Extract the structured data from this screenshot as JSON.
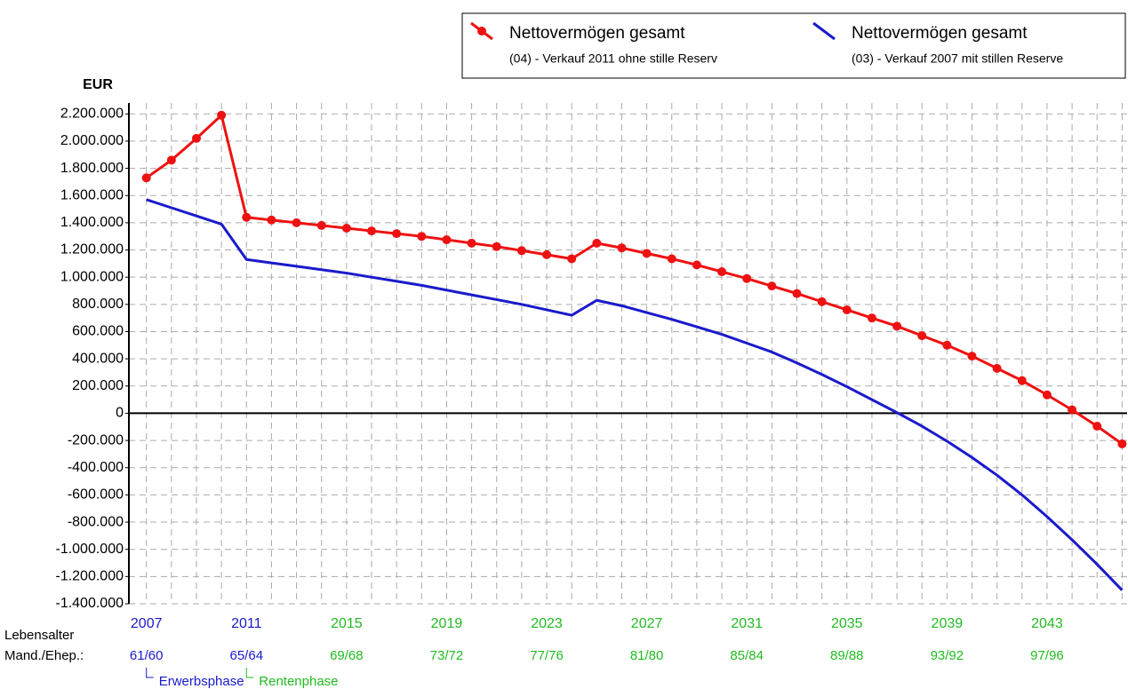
{
  "chart_data": {
    "type": "line",
    "y_label": "EUR",
    "x": [
      2007,
      2008,
      2009,
      2010,
      2011,
      2012,
      2013,
      2014,
      2015,
      2016,
      2017,
      2018,
      2019,
      2020,
      2021,
      2022,
      2023,
      2024,
      2025,
      2026,
      2027,
      2028,
      2029,
      2030,
      2031,
      2032,
      2033,
      2034,
      2035,
      2036,
      2037,
      2038,
      2039,
      2040,
      2041,
      2042,
      2043,
      2044,
      2045,
      2046
    ],
    "series": [
      {
        "name": "Nettovermögen gesamt",
        "description": "(04) - Verkauf 2011 ohne stille Reserv",
        "color": "#ee1111",
        "markers": true,
        "values": [
          1730000,
          1860000,
          2020000,
          2190000,
          1440000,
          1420000,
          1400000,
          1380000,
          1360000,
          1340000,
          1320000,
          1300000,
          1275000,
          1250000,
          1225000,
          1195000,
          1165000,
          1135000,
          1250000,
          1215000,
          1175000,
          1135000,
          1090000,
          1040000,
          990000,
          935000,
          880000,
          820000,
          760000,
          700000,
          640000,
          570000,
          500000,
          420000,
          330000,
          240000,
          135000,
          25000,
          -95000,
          -225000
        ]
      },
      {
        "name": "Nettovermögen gesamt",
        "description": "(03) - Verkauf 2007 mit stillen Reserve",
        "color": "#1a1acc",
        "markers": false,
        "values": [
          1570000,
          1510000,
          1450000,
          1390000,
          1130000,
          1105000,
          1080000,
          1055000,
          1030000,
          1000000,
          970000,
          940000,
          905000,
          870000,
          835000,
          800000,
          760000,
          720000,
          830000,
          790000,
          740000,
          690000,
          635000,
          580000,
          515000,
          450000,
          370000,
          285000,
          195000,
          100000,
          5000,
          -95000,
          -205000,
          -325000,
          -455000,
          -600000,
          -760000,
          -930000,
          -1110000,
          -1300000
        ]
      }
    ],
    "xlim": [
      2006.3,
      2046.2
    ],
    "xticks": [
      2007,
      2011,
      2015,
      2019,
      2023,
      2027,
      2031,
      2035,
      2039,
      2043
    ],
    "xtick_colors": [
      "#1a1acc",
      "#1a1acc",
      "#22bb22",
      "#22bb22",
      "#22bb22",
      "#22bb22",
      "#22bb22",
      "#22bb22",
      "#22bb22",
      "#22bb22"
    ],
    "age_title": [
      "Lebensalter",
      "Mand./Ehep.:"
    ],
    "age_labels": [
      "61/60",
      "65/64",
      "69/68",
      "73/72",
      "77/76",
      "81/80",
      "85/84",
      "89/88",
      "93/92",
      "97/96"
    ],
    "phases": [
      {
        "label": "Erwerbsphase",
        "x": 2007,
        "color": "#1a1acc"
      },
      {
        "label": "Rentenphase",
        "x": 2011,
        "color": "#22bb22"
      }
    ],
    "ylim": [
      -1400000,
      2280000
    ],
    "yticks": [
      {
        "value": 2200000,
        "label": "2.200.000"
      },
      {
        "value": 2000000,
        "label": "2.000.000"
      },
      {
        "value": 1800000,
        "label": "1.800.000"
      },
      {
        "value": 1600000,
        "label": "1.600.000"
      },
      {
        "value": 1400000,
        "label": "1.400.000"
      },
      {
        "value": 1200000,
        "label": "1.200.000"
      },
      {
        "value": 1000000,
        "label": "1.000.000"
      },
      {
        "value": 800000,
        "label": "800.000"
      },
      {
        "value": 600000,
        "label": "600.000"
      },
      {
        "value": 400000,
        "label": "400.000"
      },
      {
        "value": 200000,
        "label": "200.000"
      },
      0,
      {
        "value": -200000,
        "label": "-200.000"
      },
      {
        "value": -400000,
        "label": "-400.000"
      },
      {
        "value": -600000,
        "label": "-600.000"
      },
      {
        "value": -800000,
        "label": "-800.000"
      },
      {
        "value": -1000000,
        "label": "-1.000.000"
      },
      {
        "value": -1200000,
        "label": "-1.200.000"
      },
      {
        "value": -1400000,
        "label": "-1.400.000"
      }
    ],
    "grid": true,
    "legend": "top-right"
  }
}
